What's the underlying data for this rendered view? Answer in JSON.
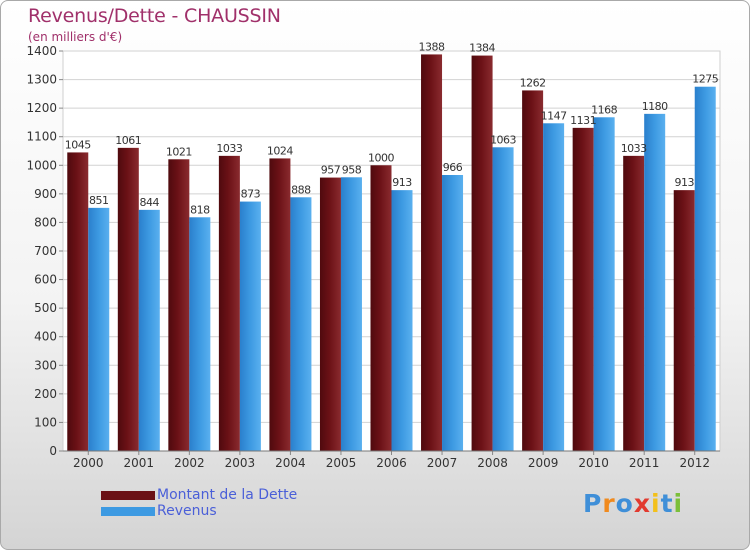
{
  "title": "Revenus/Dette - CHAUSSIN",
  "subtitle": "(en milliers d'€)",
  "chart_data": {
    "type": "bar",
    "categories": [
      "2000",
      "2001",
      "2002",
      "2003",
      "2004",
      "2005",
      "2006",
      "2007",
      "2008",
      "2009",
      "2010",
      "2011",
      "2012"
    ],
    "series": [
      {
        "name": "Montant de la Dette",
        "color": "#6b1116",
        "values": [
          1045,
          1061,
          1021,
          1033,
          1024,
          957,
          1000,
          1388,
          1384,
          1262,
          1131,
          1033,
          913
        ]
      },
      {
        "name": "Revenus",
        "color": "#3d9ae2",
        "values": [
          851,
          844,
          818,
          873,
          888,
          958,
          913,
          966,
          1063,
          1147,
          1168,
          1180,
          1275
        ]
      }
    ],
    "ylim": [
      0,
      1400
    ],
    "yticks": [
      0,
      100,
      200,
      300,
      400,
      500,
      600,
      700,
      800,
      900,
      1000,
      1100,
      1200,
      1300,
      1400
    ],
    "grid": true,
    "legend_position": "bottom-left"
  },
  "logo": {
    "letters": [
      "P",
      "r",
      "o",
      "x",
      "i",
      "t",
      "i"
    ],
    "colors": [
      "#3f8fd8",
      "#f08a1e",
      "#3f8fd8",
      "#e23a2f",
      "#f3c01b",
      "#3f8fd8",
      "#7bbf3a"
    ]
  }
}
